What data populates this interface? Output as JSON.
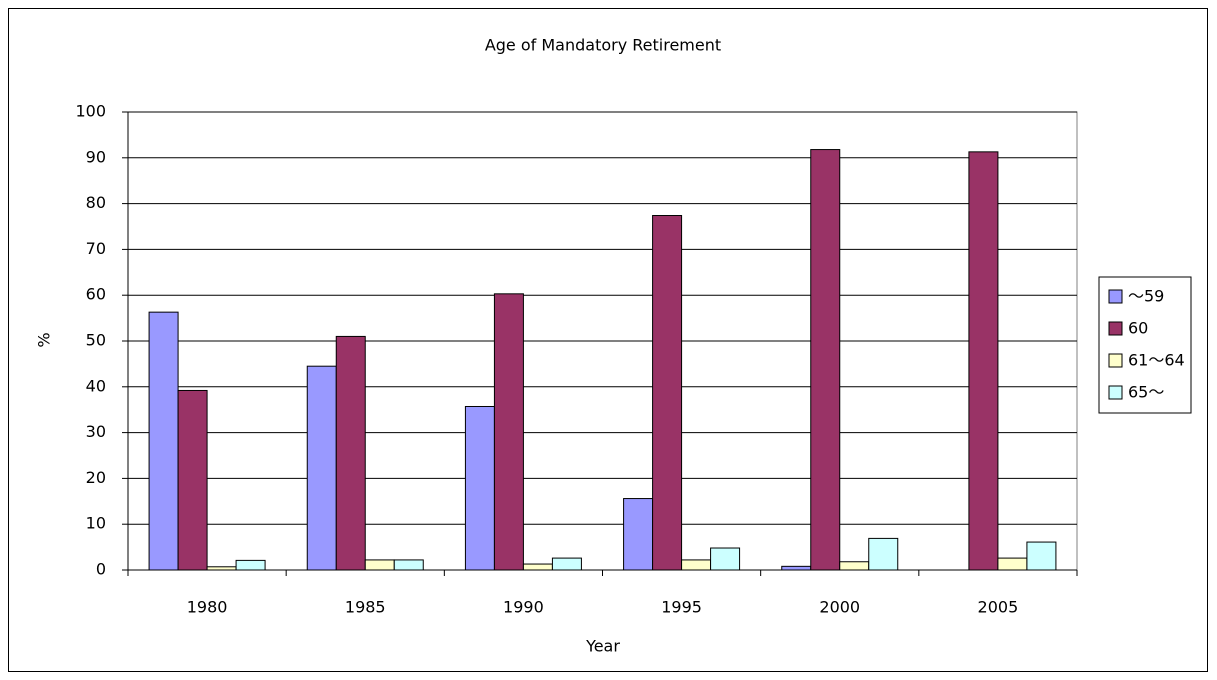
{
  "chart_data": {
    "type": "bar",
    "title": "Age of Mandatory Retirement",
    "x_label": "Year",
    "y_label": "%",
    "categories": [
      "1980",
      "1985",
      "1990",
      "1995",
      "2000",
      "2005"
    ],
    "series": [
      {
        "name": "～59",
        "color": "#9999ff",
        "values": [
          56.3,
          44.5,
          35.7,
          15.6,
          0.8,
          0
        ]
      },
      {
        "name": "60",
        "color": "#993366",
        "values": [
          39.2,
          51.0,
          60.3,
          77.4,
          91.8,
          91.3
        ]
      },
      {
        "name": "61～64",
        "color": "#ffffcc",
        "values": [
          0.7,
          2.2,
          1.3,
          2.2,
          1.8,
          2.6
        ]
      },
      {
        "name": "65～",
        "color": "#ccffff",
        "values": [
          2.1,
          2.2,
          2.6,
          4.8,
          6.9,
          6.1
        ]
      }
    ],
    "ylim": [
      0,
      100
    ],
    "yticks": [
      0,
      10,
      20,
      30,
      40,
      50,
      60,
      70,
      80,
      90,
      100
    ],
    "grid": true,
    "legend": "right"
  }
}
